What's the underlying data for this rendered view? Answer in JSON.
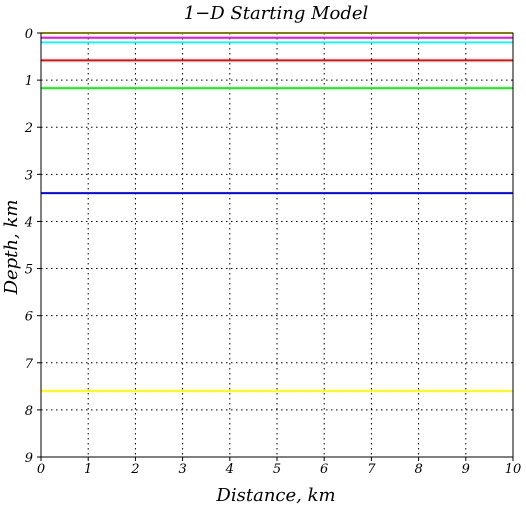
{
  "chart_data": {
    "type": "line",
    "title": "1−D Starting Model",
    "xlabel": "Distance, km",
    "ylabel": "Depth, km",
    "xlim": [
      0,
      10
    ],
    "ylim": [
      9,
      0
    ],
    "y_inverted": true,
    "grid": true,
    "x_ticks": [
      "0",
      "1",
      "2",
      "3",
      "4",
      "5",
      "6",
      "7",
      "8",
      "9",
      "10"
    ],
    "y_ticks": [
      "0",
      "1",
      "2",
      "3",
      "4",
      "5",
      "6",
      "7",
      "8",
      "9"
    ],
    "series": [
      {
        "color": "#ffff00",
        "x": [
          0,
          10
        ],
        "y": [
          0.0,
          0.0
        ]
      },
      {
        "color": "#ff00ff",
        "x": [
          0,
          10
        ],
        "y": [
          0.1,
          0.1
        ]
      },
      {
        "color": "#00ffff",
        "x": [
          0,
          10
        ],
        "y": [
          0.2,
          0.2
        ]
      },
      {
        "color": "#ff0000",
        "x": [
          0,
          10
        ],
        "y": [
          0.58,
          0.58
        ]
      },
      {
        "color": "#00ff00",
        "x": [
          0,
          10
        ],
        "y": [
          1.17,
          1.17
        ]
      },
      {
        "color": "#0000ff",
        "x": [
          0,
          10
        ],
        "y": [
          3.4,
          3.4
        ]
      },
      {
        "color": "#ffff00",
        "x": [
          0,
          10
        ],
        "y": [
          7.6,
          7.6
        ]
      }
    ]
  }
}
